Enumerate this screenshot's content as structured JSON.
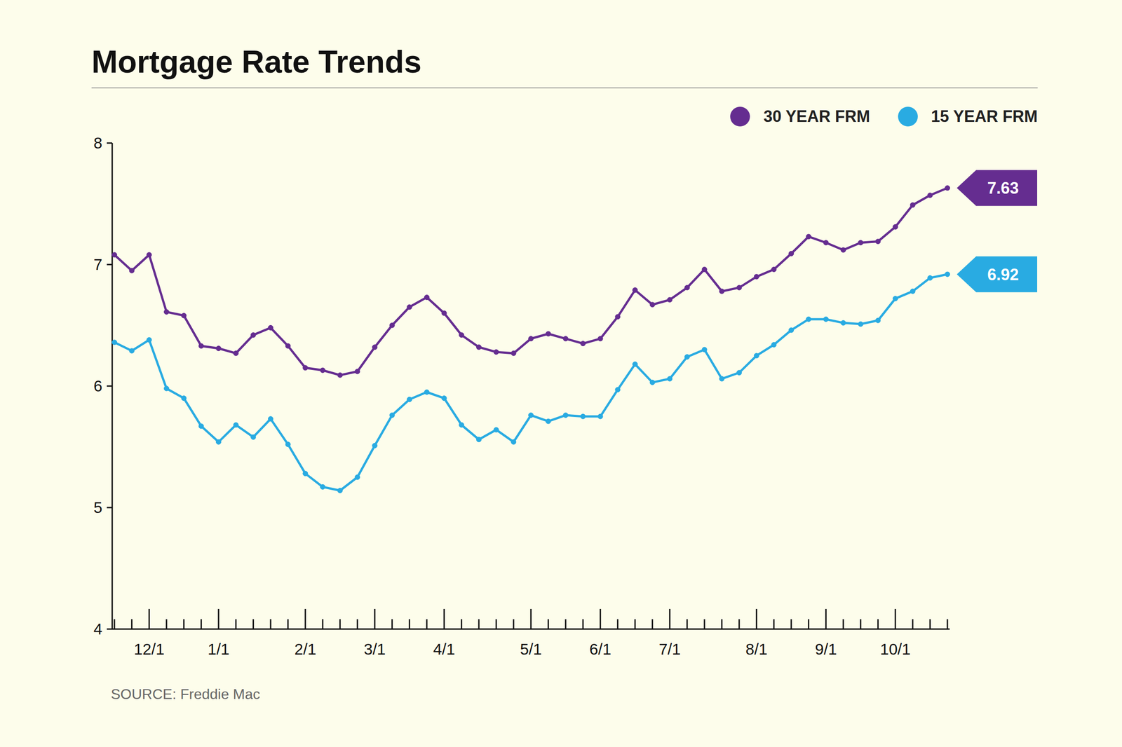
{
  "chart_data": {
    "type": "line",
    "title": "Mortgage Rate Trends",
    "source": "SOURCE: Freddie Mac",
    "categories": [
      null,
      null,
      "12/1",
      null,
      null,
      null,
      "1/1",
      null,
      null,
      null,
      null,
      "2/1",
      null,
      null,
      null,
      "3/1",
      null,
      null,
      null,
      "4/1",
      null,
      null,
      null,
      null,
      "5/1",
      null,
      null,
      null,
      "6/1",
      null,
      null,
      null,
      "7/1",
      null,
      null,
      null,
      null,
      "8/1",
      null,
      null,
      null,
      "9/1",
      null,
      null,
      null,
      "10/1",
      null,
      null,
      null
    ],
    "series": [
      {
        "name": "30 YEAR FRM",
        "color": "#652d90",
        "values": [
          7.08,
          6.95,
          7.08,
          6.61,
          6.58,
          6.33,
          6.31,
          6.27,
          6.42,
          6.48,
          6.33,
          6.15,
          6.13,
          6.09,
          6.12,
          6.32,
          6.5,
          6.65,
          6.73,
          6.6,
          6.42,
          6.32,
          6.28,
          6.27,
          6.39,
          6.43,
          6.39,
          6.35,
          6.39,
          6.57,
          6.79,
          6.67,
          6.71,
          6.81,
          6.96,
          6.78,
          6.81,
          6.9,
          6.96,
          7.09,
          7.23,
          7.18,
          7.12,
          7.18,
          7.19,
          7.31,
          7.49,
          7.57,
          7.63
        ]
      },
      {
        "name": "15 YEAR FRM",
        "color": "#29abe2",
        "values": [
          6.36,
          6.29,
          6.38,
          5.98,
          5.9,
          5.67,
          5.54,
          5.68,
          5.58,
          5.73,
          5.52,
          5.28,
          5.17,
          5.14,
          5.25,
          5.51,
          5.76,
          5.89,
          5.95,
          5.9,
          5.68,
          5.56,
          5.64,
          5.54,
          5.76,
          5.71,
          5.76,
          5.75,
          5.75,
          5.97,
          6.18,
          6.03,
          6.06,
          6.24,
          6.3,
          6.06,
          6.11,
          6.25,
          6.34,
          6.46,
          6.55,
          6.55,
          6.52,
          6.51,
          6.54,
          6.72,
          6.78,
          6.89,
          6.92
        ]
      }
    ],
    "ylim": [
      4,
      8
    ],
    "yticks": [
      4,
      5,
      6,
      7,
      8
    ],
    "grid": false,
    "legend": "top right",
    "marker": "circle"
  }
}
